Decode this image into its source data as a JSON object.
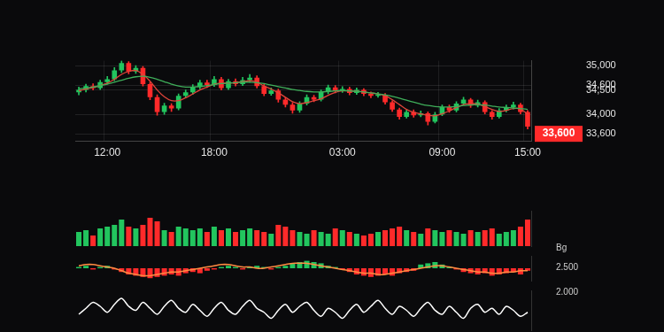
{
  "chart_data": [
    {
      "type": "candlestick",
      "categories": [
        null,
        null,
        null,
        null,
        "12:00",
        null,
        null,
        null,
        null,
        null,
        null,
        null,
        null,
        null,
        null,
        null,
        null,
        null,
        null,
        "18:00",
        null,
        null,
        null,
        null,
        null,
        null,
        null,
        null,
        null,
        null,
        null,
        null,
        null,
        null,
        null,
        null,
        null,
        "03:00",
        null,
        null,
        null,
        null,
        null,
        null,
        null,
        null,
        null,
        null,
        null,
        null,
        null,
        "09:00",
        null,
        null,
        null,
        null,
        null,
        null,
        null,
        null,
        null,
        null,
        null,
        "15:00"
      ],
      "open": [
        34450,
        34500,
        34580,
        34540,
        34660,
        34720,
        34900,
        35050,
        34880,
        34950,
        34620,
        34350,
        34050,
        34180,
        34120,
        34380,
        34450,
        34560,
        34650,
        34600,
        34720,
        34540,
        34680,
        34620,
        34700,
        34750,
        34580,
        34420,
        34490,
        34300,
        34200,
        34080,
        34220,
        34350,
        34300,
        34460,
        34550,
        34480,
        34520,
        34440,
        34500,
        34420,
        34380,
        34400,
        34250,
        34100,
        33950,
        34050,
        33980,
        34020,
        33850,
        34000,
        34150,
        34080,
        34220,
        34300,
        34180,
        34250,
        34050,
        33950,
        34080,
        34150,
        34200,
        34050
      ],
      "high": [
        34560,
        34620,
        34630,
        34700,
        34780,
        34960,
        35100,
        35080,
        35000,
        34980,
        34660,
        34400,
        34230,
        34220,
        34420,
        34500,
        34610,
        34700,
        34700,
        34780,
        34760,
        34720,
        34730,
        34760,
        34820,
        34790,
        34620,
        34540,
        34520,
        34340,
        34240,
        34260,
        34400,
        34390,
        34500,
        34600,
        34590,
        34570,
        34560,
        34540,
        34530,
        34460,
        34450,
        34430,
        34280,
        34130,
        34090,
        34090,
        34070,
        34050,
        34040,
        34190,
        34190,
        34260,
        34350,
        34330,
        34290,
        34280,
        34080,
        34120,
        34190,
        34250,
        34230,
        34080
      ],
      "low": [
        34400,
        34460,
        34500,
        34510,
        34620,
        34690,
        34860,
        34830,
        34840,
        34580,
        34300,
        33980,
        34000,
        34060,
        34090,
        34340,
        34410,
        34520,
        34550,
        34570,
        34500,
        34510,
        34580,
        34590,
        34660,
        34540,
        34380,
        34390,
        34250,
        34150,
        34020,
        34040,
        34190,
        34260,
        34270,
        34420,
        34440,
        34450,
        34400,
        34410,
        34380,
        34340,
        34350,
        34210,
        34060,
        33900,
        33920,
        33940,
        33950,
        33780,
        33820,
        33970,
        34040,
        34050,
        34190,
        34140,
        34150,
        34010,
        33900,
        33920,
        34050,
        34110,
        34010,
        33700
      ],
      "close": [
        34500,
        34580,
        34540,
        34660,
        34720,
        34900,
        35050,
        34880,
        34950,
        34620,
        34350,
        34050,
        34180,
        34120,
        34380,
        34450,
        34560,
        34650,
        34600,
        34720,
        34540,
        34680,
        34620,
        34700,
        34750,
        34580,
        34420,
        34490,
        34300,
        34200,
        34080,
        34220,
        34350,
        34300,
        34460,
        34550,
        34480,
        34520,
        34440,
        34500,
        34420,
        34380,
        34400,
        34250,
        34100,
        33950,
        34050,
        33980,
        34020,
        33850,
        34000,
        34150,
        34080,
        34220,
        34300,
        34180,
        34250,
        34050,
        33950,
        34080,
        34150,
        34200,
        34050,
        33750
      ],
      "colors": [
        "#22c55e",
        "#22c55e",
        "#ff2a2a",
        "#22c55e",
        "#22c55e",
        "#22c55e",
        "#22c55e",
        "#ff2a2a",
        "#22c55e",
        "#ff2a2a",
        "#ff2a2a",
        "#ff2a2a",
        "#22c55e",
        "#ff2a2a",
        "#22c55e",
        "#22c55e",
        "#22c55e",
        "#22c55e",
        "#ff2a2a",
        "#22c55e",
        "#ff2a2a",
        "#22c55e",
        "#ff2a2a",
        "#22c55e",
        "#22c55e",
        "#ff2a2a",
        "#ff2a2a",
        "#22c55e",
        "#ff2a2a",
        "#ff2a2a",
        "#ff2a2a",
        "#22c55e",
        "#22c55e",
        "#ff2a2a",
        "#22c55e",
        "#22c55e",
        "#ff2a2a",
        "#22c55e",
        "#ff2a2a",
        "#22c55e",
        "#ff2a2a",
        "#ff2a2a",
        "#22c55e",
        "#ff2a2a",
        "#ff2a2a",
        "#ff2a2a",
        "#22c55e",
        "#ff2a2a",
        "#22c55e",
        "#ff2a2a",
        "#22c55e",
        "#22c55e",
        "#ff2a2a",
        "#22c55e",
        "#22c55e",
        "#ff2a2a",
        "#22c55e",
        "#ff2a2a",
        "#ff2a2a",
        "#22c55e",
        "#22c55e",
        "#22c55e",
        "#ff2a2a",
        "#ff2a2a"
      ],
      "lines": [
        {
          "color": "#3fae5a",
          "values": [
            34520,
            34540,
            34560,
            34590,
            34620,
            34660,
            34700,
            34740,
            34770,
            34780,
            34760,
            34720,
            34670,
            34620,
            34580,
            34560,
            34560,
            34570,
            34590,
            34610,
            34630,
            34640,
            34650,
            34660,
            34660,
            34650,
            34630,
            34600,
            34570,
            34540,
            34510,
            34490,
            34470,
            34460,
            34460,
            34470,
            34480,
            34490,
            34480,
            34470,
            34460,
            34440,
            34420,
            34400,
            34370,
            34330,
            34290,
            34250,
            34210,
            34180,
            34160,
            34150,
            34150,
            34160,
            34180,
            34190,
            34200,
            34190,
            34170,
            34150,
            34140,
            34130,
            34120,
            34100
          ]
        },
        {
          "color": "#e0443a",
          "values": [
            34480,
            34520,
            34550,
            34590,
            34640,
            34720,
            34820,
            34880,
            34900,
            34820,
            34680,
            34500,
            34360,
            34280,
            34280,
            34340,
            34420,
            34500,
            34560,
            34620,
            34640,
            34640,
            34650,
            34670,
            34690,
            34660,
            34580,
            34520,
            34440,
            34350,
            34260,
            34220,
            34240,
            34280,
            34320,
            34390,
            34450,
            34480,
            34480,
            34470,
            34460,
            34440,
            34420,
            34380,
            34300,
            34200,
            34100,
            34040,
            34010,
            33980,
            33970,
            34010,
            34070,
            34140,
            34200,
            34220,
            34210,
            34160,
            34100,
            34060,
            34080,
            34120,
            34110,
            34000
          ]
        }
      ],
      "ylim": [
        33450,
        35100
      ],
      "yticks": [
        {
          "value": 35000,
          "label": "35,000"
        },
        {
          "value": 34500,
          "label": "34,500"
        },
        {
          "value": 34600,
          "label": "34,600"
        },
        {
          "value": 34000,
          "label": "34,000"
        },
        {
          "value": 33600,
          "label": "33,600"
        }
      ],
      "grid": true,
      "annotations": [
        {
          "text": "33,600",
          "value": 33600,
          "color": "#ff2a2a"
        }
      ]
    },
    {
      "type": "bar",
      "values": [
        40,
        45,
        30,
        50,
        55,
        60,
        75,
        55,
        50,
        60,
        80,
        70,
        45,
        40,
        55,
        50,
        45,
        50,
        40,
        55,
        45,
        50,
        40,
        45,
        50,
        45,
        40,
        35,
        60,
        55,
        45,
        40,
        35,
        45,
        40,
        35,
        50,
        45,
        40,
        35,
        30,
        35,
        40,
        45,
        50,
        55,
        45,
        40,
        35,
        50,
        45,
        40,
        45,
        40,
        35,
        45,
        40,
        45,
        50,
        35,
        40,
        45,
        55,
        75
      ],
      "colors": [
        "#22c55e",
        "#22c55e",
        "#ff2a2a",
        "#22c55e",
        "#22c55e",
        "#22c55e",
        "#22c55e",
        "#ff2a2a",
        "#22c55e",
        "#ff2a2a",
        "#ff2a2a",
        "#ff2a2a",
        "#22c55e",
        "#ff2a2a",
        "#22c55e",
        "#22c55e",
        "#22c55e",
        "#22c55e",
        "#ff2a2a",
        "#22c55e",
        "#ff2a2a",
        "#22c55e",
        "#ff2a2a",
        "#22c55e",
        "#22c55e",
        "#ff2a2a",
        "#ff2a2a",
        "#22c55e",
        "#ff2a2a",
        "#ff2a2a",
        "#ff2a2a",
        "#22c55e",
        "#22c55e",
        "#ff2a2a",
        "#22c55e",
        "#22c55e",
        "#ff2a2a",
        "#22c55e",
        "#ff2a2a",
        "#22c55e",
        "#ff2a2a",
        "#ff2a2a",
        "#22c55e",
        "#ff2a2a",
        "#ff2a2a",
        "#ff2a2a",
        "#22c55e",
        "#ff2a2a",
        "#22c55e",
        "#ff2a2a",
        "#22c55e",
        "#22c55e",
        "#ff2a2a",
        "#22c55e",
        "#22c55e",
        "#ff2a2a",
        "#22c55e",
        "#ff2a2a",
        "#ff2a2a",
        "#22c55e",
        "#22c55e",
        "#22c55e",
        "#ff2a2a",
        "#ff2a2a"
      ],
      "ylim": [
        0,
        100
      ],
      "tick_labels": false
    },
    {
      "type": "bar",
      "series": [
        {
          "type": "bar",
          "values": [
            1,
            2,
            -1,
            1,
            2,
            -1,
            -3,
            -5,
            -6,
            -7,
            -8,
            -7,
            -6,
            -5,
            -6,
            -4,
            -3,
            -4,
            -2,
            -1,
            1,
            2,
            1,
            -1,
            1,
            2,
            1,
            -1,
            1,
            2,
            4,
            5,
            6,
            5,
            4,
            2,
            1,
            -1,
            -3,
            -5,
            -6,
            -7,
            -6,
            -5,
            -6,
            -4,
            -3,
            -2,
            3,
            4,
            5,
            3,
            1,
            -1,
            -3,
            -4,
            -5,
            -4,
            -6,
            -5,
            -4,
            -3,
            -5,
            -2
          ],
          "colors": [
            "#22c55e",
            "#22c55e",
            "#ff2a2a",
            "#22c55e",
            "#22c55e",
            "#ff2a2a",
            "#ff2a2a",
            "#ff2a2a",
            "#ff2a2a",
            "#ff2a2a",
            "#ff2a2a",
            "#ff2a2a",
            "#ff2a2a",
            "#ff2a2a",
            "#ff2a2a",
            "#ff2a2a",
            "#ff2a2a",
            "#ff2a2a",
            "#ff2a2a",
            "#ff2a2a",
            "#22c55e",
            "#22c55e",
            "#22c55e",
            "#ff2a2a",
            "#22c55e",
            "#22c55e",
            "#22c55e",
            "#ff2a2a",
            "#22c55e",
            "#22c55e",
            "#22c55e",
            "#22c55e",
            "#22c55e",
            "#22c55e",
            "#22c55e",
            "#22c55e",
            "#22c55e",
            "#ff2a2a",
            "#ff2a2a",
            "#ff2a2a",
            "#ff2a2a",
            "#ff2a2a",
            "#ff2a2a",
            "#ff2a2a",
            "#ff2a2a",
            "#ff2a2a",
            "#ff2a2a",
            "#ff2a2a",
            "#22c55e",
            "#22c55e",
            "#22c55e",
            "#22c55e",
            "#22c55e",
            "#ff2a2a",
            "#ff2a2a",
            "#ff2a2a",
            "#ff2a2a",
            "#ff2a2a",
            "#ff2a2a",
            "#ff2a2a",
            "#ff2a2a",
            "#ff2a2a",
            "#ff2a2a",
            "#ff2a2a"
          ]
        },
        {
          "type": "line",
          "color": "#ff8c42",
          "values": [
            2,
            3,
            3,
            2,
            1,
            0,
            -2,
            -4,
            -5,
            -6,
            -6,
            -5,
            -4,
            -3,
            -3,
            -2,
            -1,
            0,
            1,
            2,
            3,
            3,
            2,
            1,
            1,
            0,
            0,
            1,
            2,
            3,
            4,
            4,
            4,
            3,
            2,
            1,
            0,
            -1,
            -2,
            -3,
            -4,
            -4,
            -5,
            -5,
            -4,
            -3,
            -2,
            -1,
            0,
            1,
            2,
            2,
            1,
            0,
            -1,
            -2,
            -3,
            -3,
            -4,
            -4,
            -3,
            -3,
            -2,
            -2
          ]
        }
      ],
      "ylim": [
        -10,
        10
      ],
      "tick_labels": false,
      "annotations": [
        "Bg",
        "2.500",
        "2.000"
      ]
    },
    {
      "type": "line",
      "values": [
        40,
        55,
        70,
        60,
        45,
        65,
        80,
        60,
        50,
        70,
        55,
        40,
        60,
        75,
        55,
        45,
        65,
        50,
        35,
        55,
        70,
        50,
        40,
        60,
        75,
        55,
        45,
        30,
        50,
        65,
        45,
        60,
        70,
        50,
        35,
        55,
        45,
        30,
        50,
        65,
        45,
        60,
        75,
        55,
        40,
        60,
        50,
        35,
        55,
        70,
        50,
        40,
        60,
        45,
        30,
        55,
        65,
        45,
        55,
        40,
        60,
        50,
        35,
        45
      ],
      "color": "#ffffff",
      "ylim": [
        0,
        100
      ],
      "tick_labels": false
    }
  ]
}
